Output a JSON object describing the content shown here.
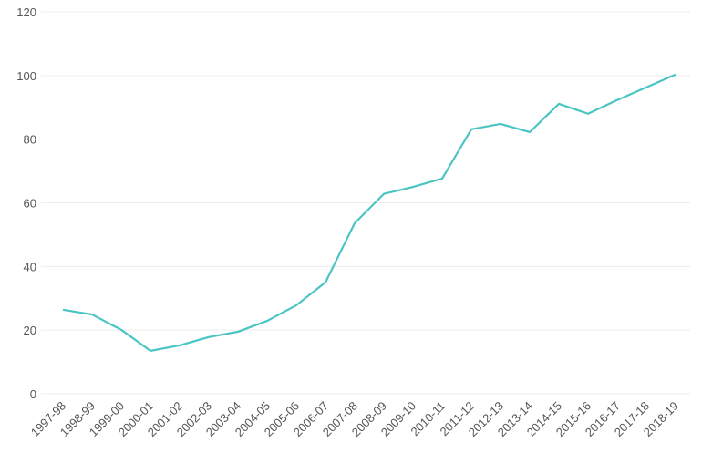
{
  "chart_data": {
    "type": "line",
    "categories": [
      "1997-98",
      "1998-99",
      "1999-00",
      "2000-01",
      "2001-02",
      "2002-03",
      "2003-04",
      "2004-05",
      "2005-06",
      "2006-07",
      "2007-08",
      "2008-09",
      "2009-10",
      "2010-11",
      "2011-12",
      "2012-13",
      "2013-14",
      "2014-15",
      "2015-16",
      "2016-17",
      "2017-18",
      "2018-19"
    ],
    "values": [
      26.4,
      24.9,
      20.1,
      13.5,
      15.2,
      17.8,
      19.5,
      22.9,
      27.8,
      35.0,
      53.6,
      62.8,
      65.0,
      67.6,
      83.1,
      84.8,
      82.2,
      91.1,
      88.0,
      92.3,
      96.3,
      100.3
    ],
    "color": "#4bc4c4",
    "ylim": [
      0,
      120
    ],
    "yticks": [
      0,
      20,
      40,
      60,
      80,
      100,
      120
    ],
    "grid": true
  }
}
